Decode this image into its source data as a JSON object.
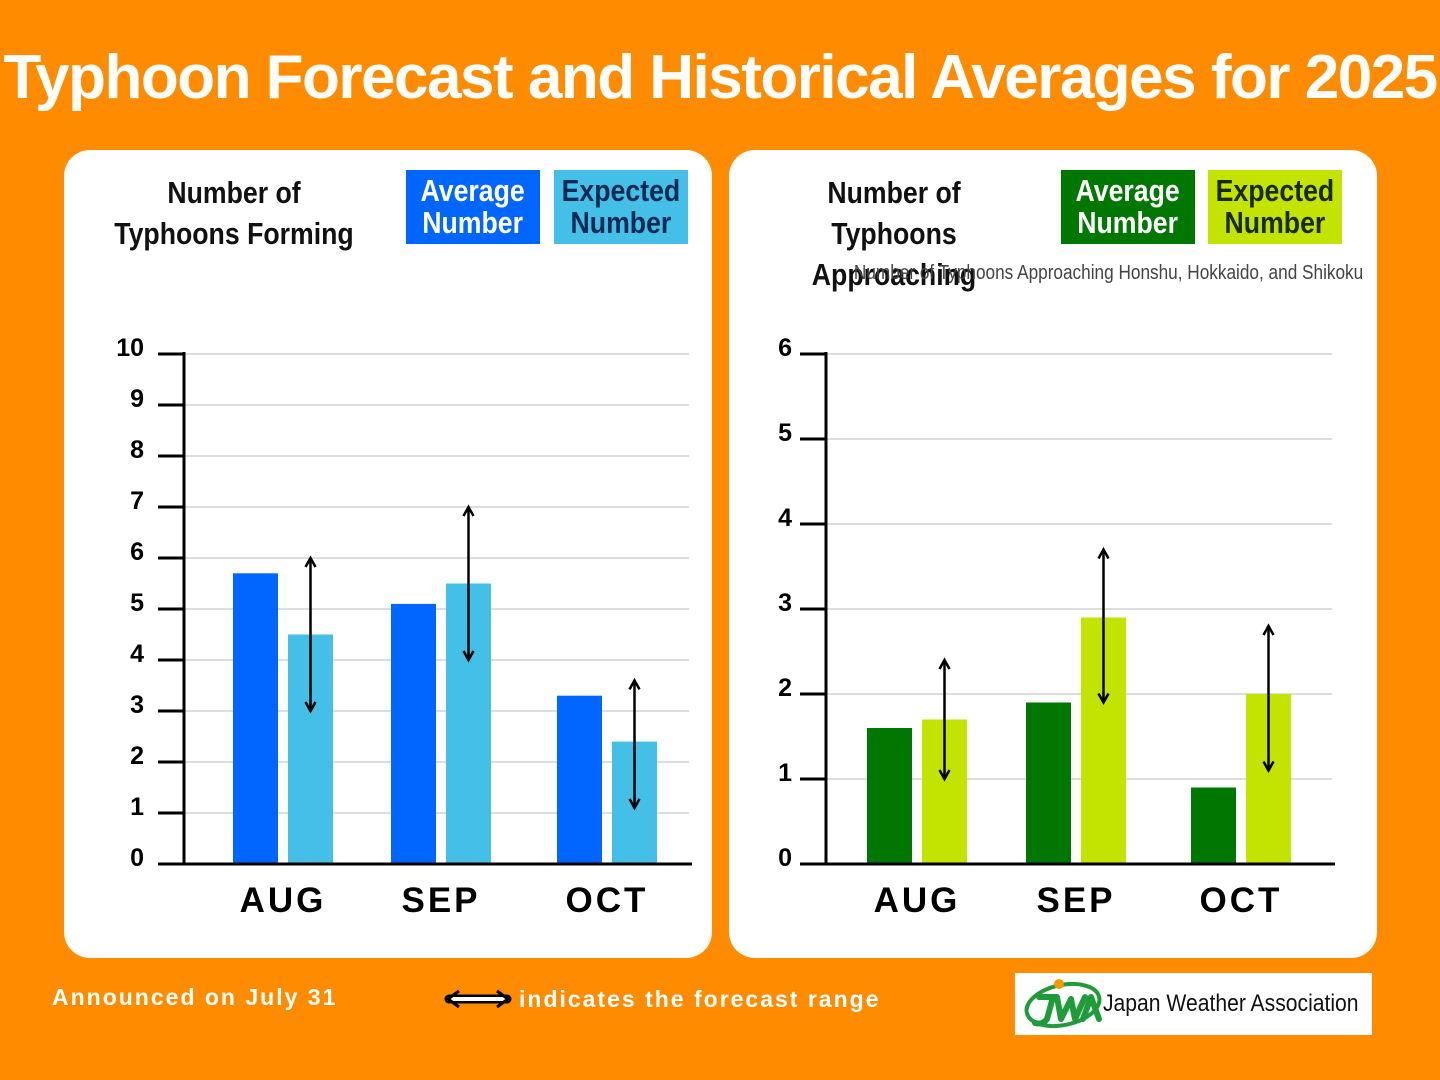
{
  "header": {
    "title": "Typhoon Forecast and Historical Averages for 2025"
  },
  "colors": {
    "background": "#ff8c00",
    "forming_average": "#0066ff",
    "forming_expected": "#44bfe8",
    "approach_average": "#007700",
    "approach_expected": "#c2e400"
  },
  "left_panel": {
    "title_line1": "Number of",
    "title_line2": "Typhoons Forming",
    "legend_average_line1": "Average",
    "legend_average_line2": "Number",
    "legend_expected_line1": "Expected",
    "legend_expected_line2": "Number"
  },
  "right_panel": {
    "title_line1": "Number of",
    "title_line2": "Typhoons Approaching",
    "legend_average_line1": "Average",
    "legend_average_line2": "Number",
    "legend_expected_line1": "Expected",
    "legend_expected_line2": "Number",
    "note": "Number of Typhoons Approaching Honshu, Hokkaido, and Shikoku"
  },
  "chart_data": [
    {
      "type": "bar",
      "categories": [
        "AUG",
        "SEP",
        "OCT"
      ],
      "ylim": [
        0,
        10
      ],
      "yticks": [
        0,
        1,
        2,
        3,
        4,
        5,
        6,
        7,
        8,
        9,
        10
      ],
      "grid": true,
      "series": [
        {
          "name": "Average Number",
          "values": [
            5.7,
            5.1,
            3.3
          ]
        },
        {
          "name": "Expected Number",
          "values": [
            4.5,
            5.5,
            2.4
          ]
        }
      ],
      "forecast_range": [
        [
          3.0,
          6.0
        ],
        [
          4.0,
          7.0
        ],
        [
          1.1,
          3.6
        ]
      ]
    },
    {
      "type": "bar",
      "categories": [
        "AUG",
        "SEP",
        "OCT"
      ],
      "ylim": [
        0,
        6
      ],
      "yticks": [
        0,
        1,
        2,
        3,
        4,
        5,
        6
      ],
      "grid": true,
      "series": [
        {
          "name": "Average Number",
          "values": [
            1.6,
            1.9,
            0.9
          ]
        },
        {
          "name": "Expected Number",
          "values": [
            1.7,
            2.9,
            2.0
          ]
        }
      ],
      "forecast_range": [
        [
          1.0,
          2.4
        ],
        [
          1.9,
          3.7
        ],
        [
          1.1,
          2.8
        ]
      ]
    }
  ],
  "footer": {
    "announced": "Announced on July 31",
    "range_note": "indicates the forecast range",
    "arrow_icon": "double-arrow-icon",
    "logo_text": "Japan Weather Association",
    "logo_icon": "jwa-logo-icon"
  }
}
